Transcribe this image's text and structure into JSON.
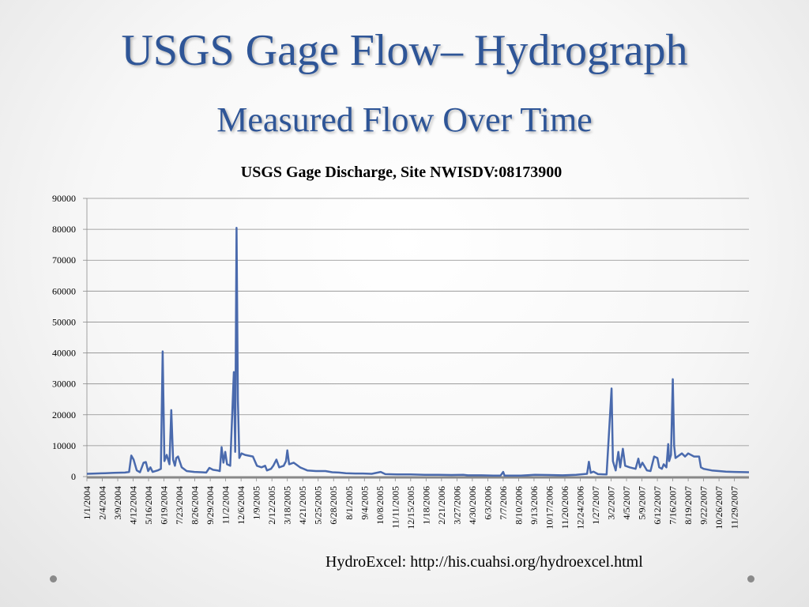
{
  "slide": {
    "title": "USGS Gage Flow– Hydrograph",
    "subtitle": "Measured Flow Over Time",
    "source_note": "HydroExcel: http://his.cuahsi.org/hydroexcel.html"
  },
  "colors": {
    "title": "#2e5597",
    "series": "#4a6aad",
    "grid": "#8c8c8c"
  },
  "chart_data": {
    "type": "line",
    "title": "USGS Gage Discharge, Site NWISDV:08173900",
    "xlabel": "",
    "ylabel": "",
    "ylim": [
      0,
      90000
    ],
    "yticks": [
      0,
      10000,
      20000,
      30000,
      40000,
      50000,
      60000,
      70000,
      80000,
      90000
    ],
    "xlim": [
      "2004-01-01",
      "2007-12-31"
    ],
    "xticks": [
      "1/1/2004",
      "2/4/2004",
      "3/9/2004",
      "4/12/2004",
      "5/16/2004",
      "6/19/2004",
      "7/23/2004",
      "8/26/2004",
      "9/29/2004",
      "11/2/2004",
      "12/6/2004",
      "1/9/2005",
      "2/12/2005",
      "3/18/2005",
      "4/21/2005",
      "5/25/2005",
      "6/28/2005",
      "8/1/2005",
      "9/4/2005",
      "10/8/2005",
      "11/11/2005",
      "12/15/2005",
      "1/18/2006",
      "2/21/2006",
      "3/27/2006",
      "4/30/2006",
      "6/3/2006",
      "7/7/2006",
      "8/10/2006",
      "9/13/2006",
      "10/17/2006",
      "11/20/2006",
      "12/24/2006",
      "1/27/2007",
      "3/2/2007",
      "4/5/2007",
      "5/9/2007",
      "6/12/2007",
      "7/16/2007",
      "8/19/2007",
      "9/22/2007",
      "10/26/2007",
      "11/29/2007"
    ],
    "grid": true,
    "legend": "none",
    "series": [
      {
        "points": [
          [
            "2004-01-01",
            900
          ],
          [
            "2004-01-20",
            1000
          ],
          [
            "2004-02-10",
            1100
          ],
          [
            "2004-03-01",
            1200
          ],
          [
            "2004-03-25",
            1300
          ],
          [
            "2004-04-03",
            1500
          ],
          [
            "2004-04-08",
            6800
          ],
          [
            "2004-04-13",
            5500
          ],
          [
            "2004-04-20",
            2000
          ],
          [
            "2004-04-27",
            1400
          ],
          [
            "2004-05-05",
            4500
          ],
          [
            "2004-05-10",
            4700
          ],
          [
            "2004-05-15",
            1800
          ],
          [
            "2004-05-20",
            3000
          ],
          [
            "2004-05-25",
            1500
          ],
          [
            "2004-06-05",
            2000
          ],
          [
            "2004-06-12",
            2500
          ],
          [
            "2004-06-16",
            40500
          ],
          [
            "2004-06-20",
            5000
          ],
          [
            "2004-06-25",
            7000
          ],
          [
            "2004-07-01",
            4000
          ],
          [
            "2004-07-05",
            21500
          ],
          [
            "2004-07-09",
            5500
          ],
          [
            "2004-07-13",
            3500
          ],
          [
            "2004-07-16",
            6000
          ],
          [
            "2004-07-20",
            6500
          ],
          [
            "2004-07-28",
            3000
          ],
          [
            "2004-08-08",
            1800
          ],
          [
            "2004-08-25",
            1500
          ],
          [
            "2004-09-10",
            1400
          ],
          [
            "2004-09-20",
            1300
          ],
          [
            "2004-09-27",
            2800
          ],
          [
            "2004-10-05",
            2200
          ],
          [
            "2004-10-15",
            2000
          ],
          [
            "2004-10-20",
            1800
          ],
          [
            "2004-10-24",
            9500
          ],
          [
            "2004-10-28",
            4500
          ],
          [
            "2004-11-01",
            8000
          ],
          [
            "2004-11-05",
            4000
          ],
          [
            "2004-11-12",
            3500
          ],
          [
            "2004-11-20",
            33800
          ],
          [
            "2004-11-23",
            8000
          ],
          [
            "2004-11-26",
            80500
          ],
          [
            "2004-11-29",
            25000
          ],
          [
            "2004-12-02",
            6000
          ],
          [
            "2004-12-07",
            7500
          ],
          [
            "2004-12-15",
            7000
          ],
          [
            "2005-01-01",
            6500
          ],
          [
            "2005-01-10",
            3500
          ],
          [
            "2005-01-20",
            3000
          ],
          [
            "2005-01-28",
            3500
          ],
          [
            "2005-02-01",
            2000
          ],
          [
            "2005-02-10",
            2500
          ],
          [
            "2005-02-15",
            3500
          ],
          [
            "2005-02-22",
            5500
          ],
          [
            "2005-02-28",
            3000
          ],
          [
            "2005-03-10",
            3500
          ],
          [
            "2005-03-15",
            5000
          ],
          [
            "2005-03-18",
            8500
          ],
          [
            "2005-03-22",
            4000
          ],
          [
            "2005-04-01",
            4500
          ],
          [
            "2005-04-15",
            3000
          ],
          [
            "2005-05-01",
            2000
          ],
          [
            "2005-05-20",
            1800
          ],
          [
            "2005-06-10",
            1800
          ],
          [
            "2005-06-25",
            1400
          ],
          [
            "2005-07-10",
            1300
          ],
          [
            "2005-07-25",
            1100
          ],
          [
            "2005-08-15",
            1000
          ],
          [
            "2005-09-01",
            1000
          ],
          [
            "2005-09-20",
            900
          ],
          [
            "2005-10-10",
            1500
          ],
          [
            "2005-10-20",
            800
          ],
          [
            "2005-11-15",
            700
          ],
          [
            "2005-12-15",
            700
          ],
          [
            "2006-01-15",
            600
          ],
          [
            "2006-02-15",
            600
          ],
          [
            "2006-03-15",
            500
          ],
          [
            "2006-04-10",
            600
          ],
          [
            "2006-04-20",
            400
          ],
          [
            "2006-05-20",
            400
          ],
          [
            "2006-06-15",
            300
          ],
          [
            "2006-07-01",
            300
          ],
          [
            "2006-07-07",
            1500
          ],
          [
            "2006-07-10",
            300
          ],
          [
            "2006-08-15",
            300
          ],
          [
            "2006-09-15",
            600
          ],
          [
            "2006-10-15",
            500
          ],
          [
            "2006-11-15",
            400
          ],
          [
            "2006-12-15",
            600
          ],
          [
            "2007-01-08",
            900
          ],
          [
            "2007-01-12",
            4800
          ],
          [
            "2007-01-16",
            1200
          ],
          [
            "2007-01-22",
            1600
          ],
          [
            "2007-02-01",
            800
          ],
          [
            "2007-02-20",
            700
          ],
          [
            "2007-03-03",
            28500
          ],
          [
            "2007-03-06",
            5000
          ],
          [
            "2007-03-12",
            2000
          ],
          [
            "2007-03-18",
            8000
          ],
          [
            "2007-03-22",
            3000
          ],
          [
            "2007-03-28",
            9000
          ],
          [
            "2007-04-02",
            3500
          ],
          [
            "2007-04-12",
            3000
          ],
          [
            "2007-04-25",
            2500
          ],
          [
            "2007-05-01",
            5800
          ],
          [
            "2007-05-05",
            3000
          ],
          [
            "2007-05-10",
            4500
          ],
          [
            "2007-05-20",
            2000
          ],
          [
            "2007-05-28",
            1800
          ],
          [
            "2007-06-05",
            6500
          ],
          [
            "2007-06-12",
            6000
          ],
          [
            "2007-06-16",
            3000
          ],
          [
            "2007-06-22",
            2500
          ],
          [
            "2007-06-26",
            4000
          ],
          [
            "2007-07-02",
            3000
          ],
          [
            "2007-07-06",
            10500
          ],
          [
            "2007-07-08",
            5000
          ],
          [
            "2007-07-12",
            7000
          ],
          [
            "2007-07-16",
            31500
          ],
          [
            "2007-07-19",
            10000
          ],
          [
            "2007-07-22",
            6000
          ],
          [
            "2007-08-05",
            7500
          ],
          [
            "2007-08-12",
            6500
          ],
          [
            "2007-08-19",
            7500
          ],
          [
            "2007-09-01",
            6500
          ],
          [
            "2007-09-12",
            6500
          ],
          [
            "2007-09-16",
            3000
          ],
          [
            "2007-09-22",
            2500
          ],
          [
            "2007-10-10",
            2000
          ],
          [
            "2007-10-26",
            1800
          ],
          [
            "2007-11-10",
            1600
          ],
          [
            "2007-11-29",
            1500
          ],
          [
            "2007-12-31",
            1400
          ]
        ]
      }
    ]
  }
}
